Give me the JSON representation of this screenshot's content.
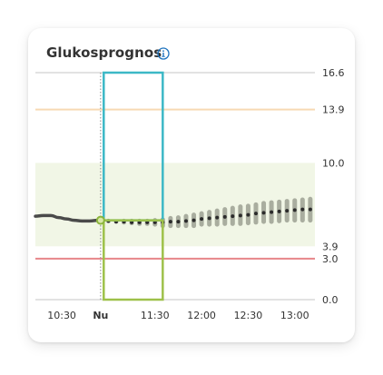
{
  "card": {
    "title": "Glukosprognos",
    "info_icon": "info-icon"
  },
  "colors": {
    "card_background": "#ffffff",
    "target_range_fill": "#f1f6e6",
    "high_line": "#f7d9b3",
    "low_line": "#e7868a",
    "gridline": "#d8d8d8",
    "history_line": "#4a4a4a",
    "forecast_dot": "#2b2b2b",
    "forecast_band": "#a9ad9f",
    "now_marker": "#8bb43c",
    "now_marker_fill": "#d8e8a8",
    "highlight_upper": "#3cb8c6",
    "highlight_lower": "#9ec14a",
    "axis_text": "#333333",
    "info_icon": "#1e73be"
  },
  "chart_data": {
    "type": "line",
    "title": "Glukosprognos",
    "y_range": [
      0.0,
      16.6
    ],
    "x_range": [
      "10:13",
      "13:13"
    ],
    "y_ticks": [
      {
        "value": 16.6,
        "label": "16.6"
      },
      {
        "value": 13.9,
        "label": "13.9"
      },
      {
        "value": 10.0,
        "label": "10.0"
      },
      {
        "value": 3.9,
        "label": "3.9"
      },
      {
        "value": 3.0,
        "label": "3.0"
      },
      {
        "value": 0.0,
        "label": "0.0"
      }
    ],
    "x_ticks": [
      {
        "time": "10:30",
        "label": "10:30",
        "bold": false
      },
      {
        "time": "10:55",
        "label": "Nu",
        "bold": true
      },
      {
        "time": "11:30",
        "label": "11:30",
        "bold": false
      },
      {
        "time": "12:00",
        "label": "12:00",
        "bold": false
      },
      {
        "time": "12:30",
        "label": "12:30",
        "bold": false
      },
      {
        "time": "13:00",
        "label": "13:00",
        "bold": false
      }
    ],
    "gridlines": [
      16.6,
      0.0
    ],
    "target_range": [
      3.9,
      10.0
    ],
    "high_threshold": 13.9,
    "low_threshold": 3.0,
    "now_time": "10:55",
    "now_value": 5.8,
    "highlight": {
      "start_time": "10:57",
      "end_time": "11:35",
      "y_min": 0.0,
      "y_max": 16.6,
      "split_value": 5.8
    },
    "history": [
      {
        "time": "10:13",
        "value": 6.1
      },
      {
        "time": "10:18",
        "value": 6.15
      },
      {
        "time": "10:23",
        "value": 6.15
      },
      {
        "time": "10:28",
        "value": 6.0
      },
      {
        "time": "10:33",
        "value": 5.9
      },
      {
        "time": "10:38",
        "value": 5.8
      },
      {
        "time": "10:43",
        "value": 5.75
      },
      {
        "time": "10:48",
        "value": 5.75
      },
      {
        "time": "10:53",
        "value": 5.8
      }
    ],
    "forecast": [
      {
        "time": "11:00",
        "value": 5.75,
        "low": 5.75,
        "high": 5.75
      },
      {
        "time": "11:05",
        "value": 5.7,
        "low": 5.7,
        "high": 5.7
      },
      {
        "time": "11:10",
        "value": 5.7,
        "low": 5.65,
        "high": 5.75
      },
      {
        "time": "11:15",
        "value": 5.65,
        "low": 5.6,
        "high": 5.75
      },
      {
        "time": "11:20",
        "value": 5.65,
        "low": 5.55,
        "high": 5.75
      },
      {
        "time": "11:25",
        "value": 5.65,
        "low": 5.55,
        "high": 5.75
      },
      {
        "time": "11:30",
        "value": 5.65,
        "low": 5.5,
        "high": 5.8
      },
      {
        "time": "11:35",
        "value": 5.65,
        "low": 5.4,
        "high": 5.85
      },
      {
        "time": "11:40",
        "value": 5.7,
        "low": 5.4,
        "high": 5.95
      },
      {
        "time": "11:45",
        "value": 5.7,
        "low": 5.4,
        "high": 6.0
      },
      {
        "time": "11:50",
        "value": 5.75,
        "low": 5.4,
        "high": 6.1
      },
      {
        "time": "11:55",
        "value": 5.8,
        "low": 5.4,
        "high": 6.2
      },
      {
        "time": "12:00",
        "value": 5.9,
        "low": 5.5,
        "high": 6.3
      },
      {
        "time": "12:05",
        "value": 5.95,
        "low": 5.5,
        "high": 6.4
      },
      {
        "time": "12:10",
        "value": 6.0,
        "low": 5.5,
        "high": 6.5
      },
      {
        "time": "12:15",
        "value": 6.05,
        "low": 5.55,
        "high": 6.6
      },
      {
        "time": "12:20",
        "value": 6.1,
        "low": 5.55,
        "high": 6.7
      },
      {
        "time": "12:25",
        "value": 6.15,
        "low": 5.55,
        "high": 6.8
      },
      {
        "time": "12:30",
        "value": 6.2,
        "low": 5.6,
        "high": 6.85
      },
      {
        "time": "12:35",
        "value": 6.3,
        "low": 5.65,
        "high": 6.95
      },
      {
        "time": "12:40",
        "value": 6.35,
        "low": 5.7,
        "high": 7.05
      },
      {
        "time": "12:45",
        "value": 6.4,
        "low": 5.7,
        "high": 7.1
      },
      {
        "time": "12:50",
        "value": 6.45,
        "low": 5.75,
        "high": 7.15
      },
      {
        "time": "12:55",
        "value": 6.5,
        "low": 5.8,
        "high": 7.2
      },
      {
        "time": "13:00",
        "value": 6.55,
        "low": 5.8,
        "high": 7.25
      },
      {
        "time": "13:05",
        "value": 6.6,
        "low": 5.8,
        "high": 7.3
      },
      {
        "time": "13:10",
        "value": 6.6,
        "low": 5.8,
        "high": 7.35
      }
    ]
  }
}
